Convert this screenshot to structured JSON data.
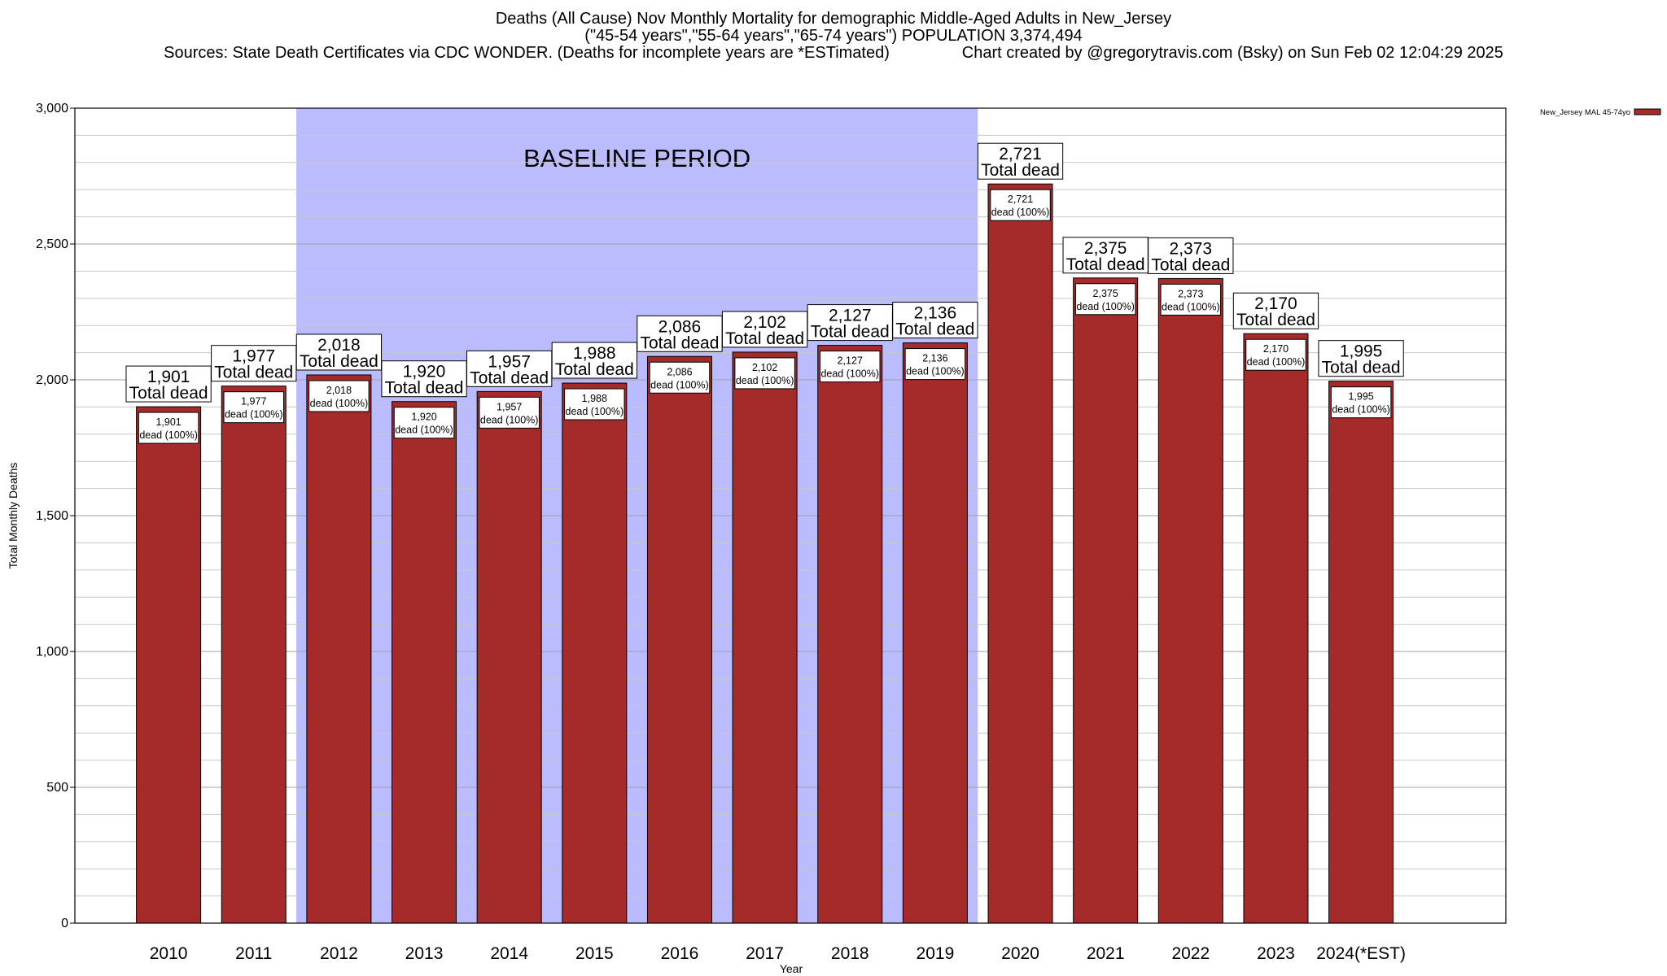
{
  "header": {
    "line1": "Deaths (All Cause) Nov Monthly Mortality for demographic Middle-Aged Adults in New_Jersey",
    "line2": "(\"45-54 years\",\"55-64 years\",\"65-74 years\") POPULATION 3,374,494",
    "line3": "Sources: State Death Certificates via CDC WONDER. (Deaths for incomplete years are *ESTimated)                Chart created by @gregorytravis.com (Bsky) on Sun Feb 02 12:04:29 2025"
  },
  "chart_data": {
    "type": "bar",
    "xlabel": "Year",
    "ylabel": "Total Monthly Deaths",
    "ylim": [
      0,
      3000
    ],
    "yticks": [
      0,
      500,
      1000,
      1500,
      2000,
      2500,
      3000
    ],
    "ytick_labels": [
      "0",
      "500",
      "1,000",
      "1,500",
      "2,000",
      "2,500",
      "3,000"
    ],
    "grid": true,
    "legend_position": "top-right",
    "categories": [
      "2010",
      "2011",
      "2012",
      "2013",
      "2014",
      "2015",
      "2016",
      "2017",
      "2018",
      "2019",
      "2020",
      "2021",
      "2022",
      "2023",
      "2024(*EST)"
    ],
    "series": [
      {
        "name": "New_Jersey MAL 45-74yo",
        "color": "#a52a2a",
        "values": [
          1901,
          1977,
          2018,
          1920,
          1957,
          1988,
          2086,
          2102,
          2127,
          2136,
          2721,
          2375,
          2373,
          2170,
          1995
        ]
      }
    ],
    "bar_top_labels": [
      "1,901",
      "1,977",
      "2,018",
      "1,920",
      "1,957",
      "1,988",
      "2,086",
      "2,102",
      "2,127",
      "2,136",
      "2,721",
      "2,375",
      "2,373",
      "2,170",
      "1,995"
    ],
    "bar_top_caption": "Total dead",
    "bar_inner_caption": "dead (100%)",
    "baseline": {
      "label": "BASELINE PERIOD",
      "start": "2012",
      "end": "2019",
      "color": "#bbbbff"
    }
  }
}
